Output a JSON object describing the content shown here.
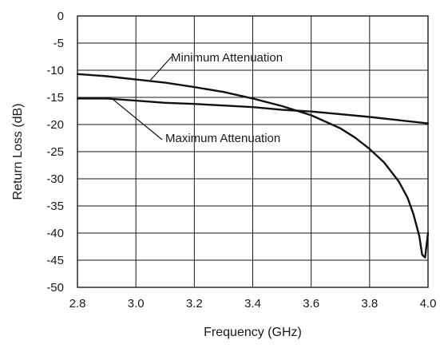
{
  "chart_data": {
    "type": "line",
    "xlabel": "Frequency (GHz)",
    "ylabel": "Return Loss (dB)",
    "xlim": [
      2.8,
      4.0
    ],
    "ylim": [
      -50,
      0
    ],
    "xticks": [
      "2.8",
      "3.0",
      "3.2",
      "3.4",
      "3.6",
      "3.8",
      "4.0"
    ],
    "yticks": [
      "0",
      "-5",
      "-10",
      "-15",
      "-20",
      "-25",
      "-30",
      "-35",
      "-40",
      "-45",
      "-50"
    ],
    "grid": true,
    "series": [
      {
        "name": "Minimum Attenuation",
        "x": [
          2.8,
          2.9,
          3.0,
          3.1,
          3.2,
          3.3,
          3.4,
          3.5,
          3.6,
          3.7,
          3.75,
          3.8,
          3.85,
          3.9,
          3.93,
          3.95,
          3.97,
          3.98,
          3.99,
          4.0
        ],
        "y": [
          -10.7,
          -11.1,
          -11.7,
          -12.3,
          -13.1,
          -14.0,
          -15.2,
          -16.6,
          -18.3,
          -20.7,
          -22.4,
          -24.5,
          -27.0,
          -30.5,
          -33.5,
          -36.5,
          -40.5,
          -44.0,
          -44.5,
          -40.0
        ]
      },
      {
        "name": "Maximum Attenuation",
        "x": [
          2.8,
          2.9,
          3.0,
          3.1,
          3.2,
          3.3,
          3.4,
          3.5,
          3.6,
          3.7,
          3.8,
          3.9,
          4.0
        ],
        "y": [
          -15.2,
          -15.2,
          -15.6,
          -16.0,
          -16.2,
          -16.5,
          -16.8,
          -17.3,
          -17.6,
          -18.1,
          -18.6,
          -19.2,
          -19.8
        ]
      }
    ],
    "annotations": [
      {
        "text": "Minimum Attenuation",
        "series": 0,
        "x": 3.05,
        "y": -11.8
      },
      {
        "text": "Maximum Attenuation",
        "series": 1,
        "x": 2.92,
        "y": -15.3
      }
    ]
  }
}
